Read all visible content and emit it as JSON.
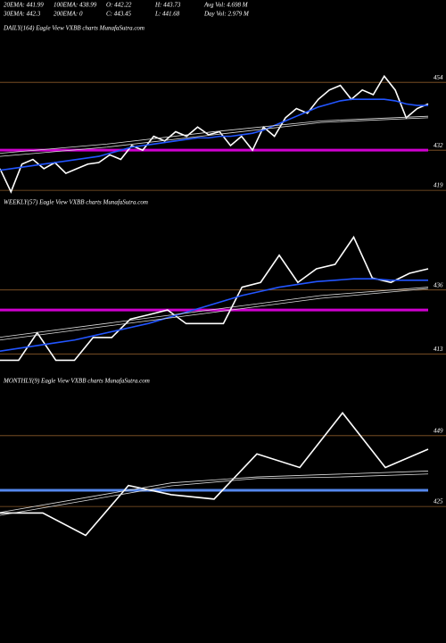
{
  "header": {
    "stats": [
      [
        "20EMA: 441.99",
        "100EMA: 438.99",
        "O: 442.22",
        "H: 443.73",
        "Avg Vol: 4.698 M"
      ],
      [
        "30EMA: 442.3",
        "200EMA: 0",
        "C: 443.45",
        "L: 441.68",
        "Day Vol: 2.979 M"
      ]
    ]
  },
  "chart_data": [
    {
      "type": "line",
      "title": "DAILY(164) Eagle  View  VXBB charts MunafaSutra.com",
      "ylim": [
        417,
        472
      ],
      "yticks": [
        419,
        432,
        454
      ],
      "level_line": {
        "value": 432,
        "color": "#d000d0"
      },
      "series": [
        {
          "color": "#ffffff",
          "values": [
            426,
            418.5,
            427.5,
            429,
            426,
            428,
            424.5,
            426,
            427.5,
            428,
            430.5,
            429,
            433.5,
            432,
            436.5,
            435,
            438,
            436.5,
            439.5,
            437,
            438,
            433.5,
            436.5,
            432,
            439.5,
            436.5,
            442.5,
            445.5,
            444,
            448.5,
            451.5,
            453,
            448.5,
            451.5,
            450,
            456,
            451.5,
            442.5,
            445.5,
            447
          ]
        },
        {
          "color": "#2255ff",
          "values": [
            425.5,
            426,
            426.5,
            427,
            427.5,
            428,
            428.5,
            429,
            429.5,
            430,
            431,
            432,
            433,
            433.5,
            434,
            434.5,
            435,
            435.5,
            436,
            436,
            436.5,
            436.5,
            437,
            437.5,
            438.5,
            440,
            441.5,
            443,
            444.5,
            446,
            447,
            448,
            448.5,
            448.5,
            448.5,
            448.5,
            448,
            447,
            446.5,
            446.5
          ]
        },
        {
          "color": "#dddddd",
          "values": [
            431,
            434,
            438,
            441.5,
            443
          ]
        },
        {
          "color": "#dddddd",
          "values": [
            430,
            433,
            437,
            441,
            442.5
          ]
        }
      ]
    },
    {
      "type": "line",
      "title": "WEEKLY(57) Eagle  View  VXBB charts MunafaSutra.com",
      "ylim": [
        407,
        468
      ],
      "yticks": [
        413,
        436
      ],
      "level_line": {
        "value": 428.8,
        "color": "#d000d0"
      },
      "series": [
        {
          "color": "#ffffff",
          "values": [
            410.7,
            410.7,
            420.6,
            410.7,
            410.7,
            418.9,
            418.9,
            425.5,
            427.1,
            428.8,
            423.9,
            423.9,
            423.9,
            437,
            438.7,
            448.5,
            438.7,
            443.6,
            445.2,
            455,
            440.3,
            438.7,
            442,
            443.6
          ]
        },
        {
          "color": "#2255ff",
          "values": [
            414,
            415,
            416,
            417,
            418,
            419.5,
            421,
            422.5,
            424,
            426,
            428,
            430,
            432,
            434,
            435.5,
            437,
            438,
            439,
            439.5,
            440,
            440,
            439.5,
            439.5,
            439.5
          ]
        },
        {
          "color": "#dddddd",
          "values": [
            419,
            424,
            429,
            434,
            437
          ]
        },
        {
          "color": "#dddddd",
          "values": [
            418,
            423,
            428,
            433,
            436.5
          ]
        }
      ]
    },
    {
      "type": "line",
      "title": "MONTHLY(9) Eagle  View  VXBB charts MunafaSutra.com",
      "ylim": [
        409,
        468
      ],
      "yticks": [
        425,
        449
      ],
      "level_line": {
        "value": 430.5,
        "color": "#5588ee"
      },
      "series": [
        {
          "color": "#ffffff",
          "values": [
            422.8,
            422.8,
            415.2,
            432.1,
            429,
            427.5,
            442.8,
            438.2,
            456.7,
            438.2,
            444.4
          ]
        },
        {
          "color": "#dddddd",
          "values": [
            422,
            427,
            432,
            434.5,
            435,
            436
          ]
        },
        {
          "color": "#dddddd",
          "values": [
            423,
            428,
            433,
            435,
            436,
            437
          ]
        }
      ]
    }
  ]
}
